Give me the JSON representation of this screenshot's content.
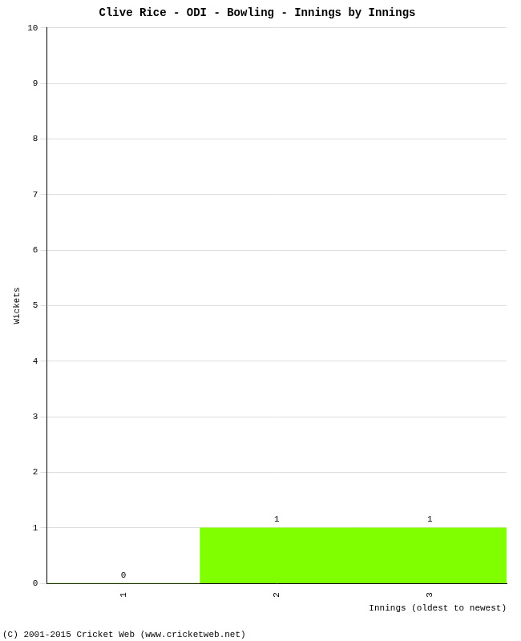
{
  "chart_data": {
    "type": "bar",
    "title": "Clive Rice - ODI - Bowling - Innings by Innings",
    "x_label": "Innings (oldest to newest)",
    "y_label": "Wickets",
    "categories": [
      "1",
      "2",
      "3"
    ],
    "values": [
      0,
      1,
      1
    ],
    "color": "#80ff00",
    "ylim": [
      0,
      10
    ],
    "yticks": [
      0,
      1,
      2,
      3,
      4,
      5,
      6,
      7,
      8,
      9,
      10
    ],
    "grid": true,
    "data_labels": true,
    "annotations": [
      "(C) 2001-2015 Cricket Web (www.cricketweb.net)"
    ]
  }
}
